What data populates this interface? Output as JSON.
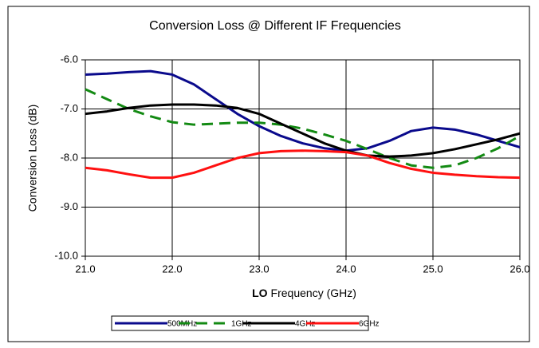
{
  "chart_data": {
    "type": "line",
    "title": "Conversion Loss @ Different IF Frequencies",
    "x_label_bold": "LO",
    "x_label": "Frequency (GHz)",
    "y_label": "Conversion Loss (dB)",
    "x": [
      21,
      21.25,
      21.5,
      21.75,
      22,
      22.25,
      22.5,
      22.75,
      23,
      23.25,
      23.5,
      23.75,
      24,
      24.25,
      24.5,
      24.75,
      25,
      25.25,
      25.5,
      25.75,
      26
    ],
    "series": [
      {
        "name": "500MHz",
        "color": "#0a0a8c",
        "dash": false,
        "values": [
          -6.3,
          -6.28,
          -6.25,
          -6.23,
          -6.3,
          -6.5,
          -6.8,
          -7.1,
          -7.35,
          -7.55,
          -7.7,
          -7.8,
          -7.85,
          -7.8,
          -7.65,
          -7.45,
          -7.38,
          -7.42,
          -7.52,
          -7.65,
          -7.78
        ]
      },
      {
        "name": "1GHz",
        "color": "#138a13",
        "dash": true,
        "values": [
          -6.6,
          -6.8,
          -7.0,
          -7.15,
          -7.27,
          -7.32,
          -7.3,
          -7.28,
          -7.28,
          -7.32,
          -7.4,
          -7.52,
          -7.65,
          -7.82,
          -8.0,
          -8.15,
          -8.2,
          -8.15,
          -8.0,
          -7.8,
          -7.55
        ]
      },
      {
        "name": "4GHz",
        "color": "#000000",
        "dash": false,
        "values": [
          -7.1,
          -7.05,
          -6.98,
          -6.93,
          -6.91,
          -6.91,
          -6.93,
          -6.98,
          -7.1,
          -7.3,
          -7.5,
          -7.7,
          -7.85,
          -7.95,
          -7.97,
          -7.95,
          -7.9,
          -7.82,
          -7.72,
          -7.62,
          -7.5
        ]
      },
      {
        "name": "6GHz",
        "color": "#ff1010",
        "dash": false,
        "values": [
          -8.2,
          -8.25,
          -8.33,
          -8.4,
          -8.4,
          -8.3,
          -8.15,
          -8.0,
          -7.9,
          -7.86,
          -7.85,
          -7.86,
          -7.88,
          -7.95,
          -8.1,
          -8.22,
          -8.3,
          -8.34,
          -8.37,
          -8.39,
          -8.4
        ]
      }
    ],
    "xlim": [
      21,
      26
    ],
    "xticks": [
      {
        "value": 21,
        "label": "21.0"
      },
      {
        "value": 22,
        "label": "22.0"
      },
      {
        "value": 23,
        "label": "23.0"
      },
      {
        "value": 24,
        "label": "24.0"
      },
      {
        "value": 25,
        "label": "25.0"
      },
      {
        "value": 26,
        "label": "26.0"
      }
    ],
    "ylim": [
      -10,
      -6
    ],
    "yticks": [
      {
        "value": -10,
        "label": "-10.0"
      },
      {
        "value": -9,
        "label": "-9.0"
      },
      {
        "value": -8,
        "label": "-8.0"
      },
      {
        "value": -7,
        "label": "-7.0"
      },
      {
        "value": -6,
        "label": "-6.0"
      }
    ],
    "grid": true,
    "legend": "bottom"
  }
}
